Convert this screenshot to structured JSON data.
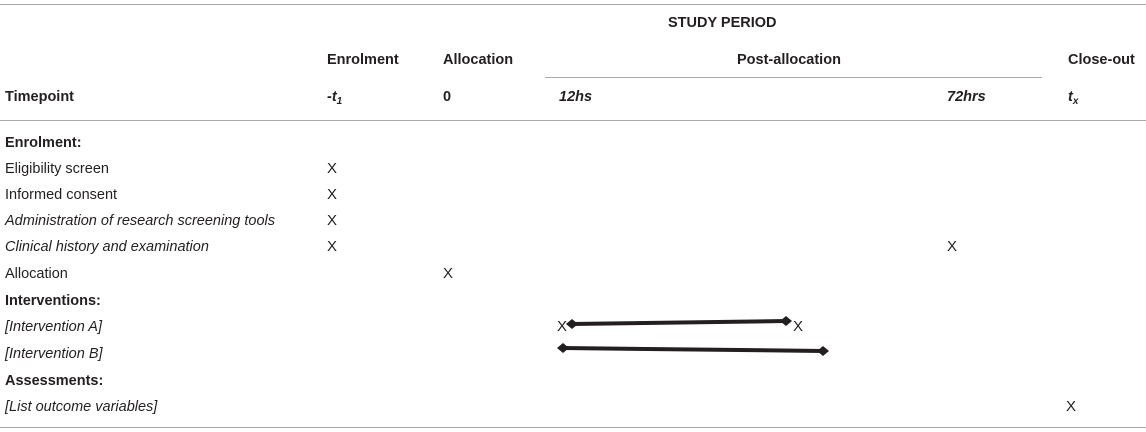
{
  "header": {
    "study_period": "STUDY PERIOD",
    "enrolment": "Enrolment",
    "allocation": "Allocation",
    "post_allocation": "Post-allocation",
    "close_out": "Close-out",
    "timepoint_label": "Timepoint",
    "tp_minus_prefix": "-t",
    "tp_minus_sub": "1",
    "tp_zero": "0",
    "tp_12": "12hs",
    "tp_72": "72hrs",
    "tp_x_main": "t",
    "tp_x_sub": "x"
  },
  "sections": {
    "enrolment": "Enrolment:",
    "interventions": "Interventions:",
    "assessments": "Assessments:"
  },
  "rows": {
    "eligibility": "Eligibility screen",
    "consent": "Informed consent",
    "screening_tools": "Administration of research screening tools",
    "clinical_history": "Clinical history and examination",
    "allocation": "Allocation",
    "intervention_a": "[Intervention A]",
    "intervention_b": "[Intervention B]",
    "outcomes": "[List outcome variables]"
  },
  "marks": {
    "x": "X"
  }
}
